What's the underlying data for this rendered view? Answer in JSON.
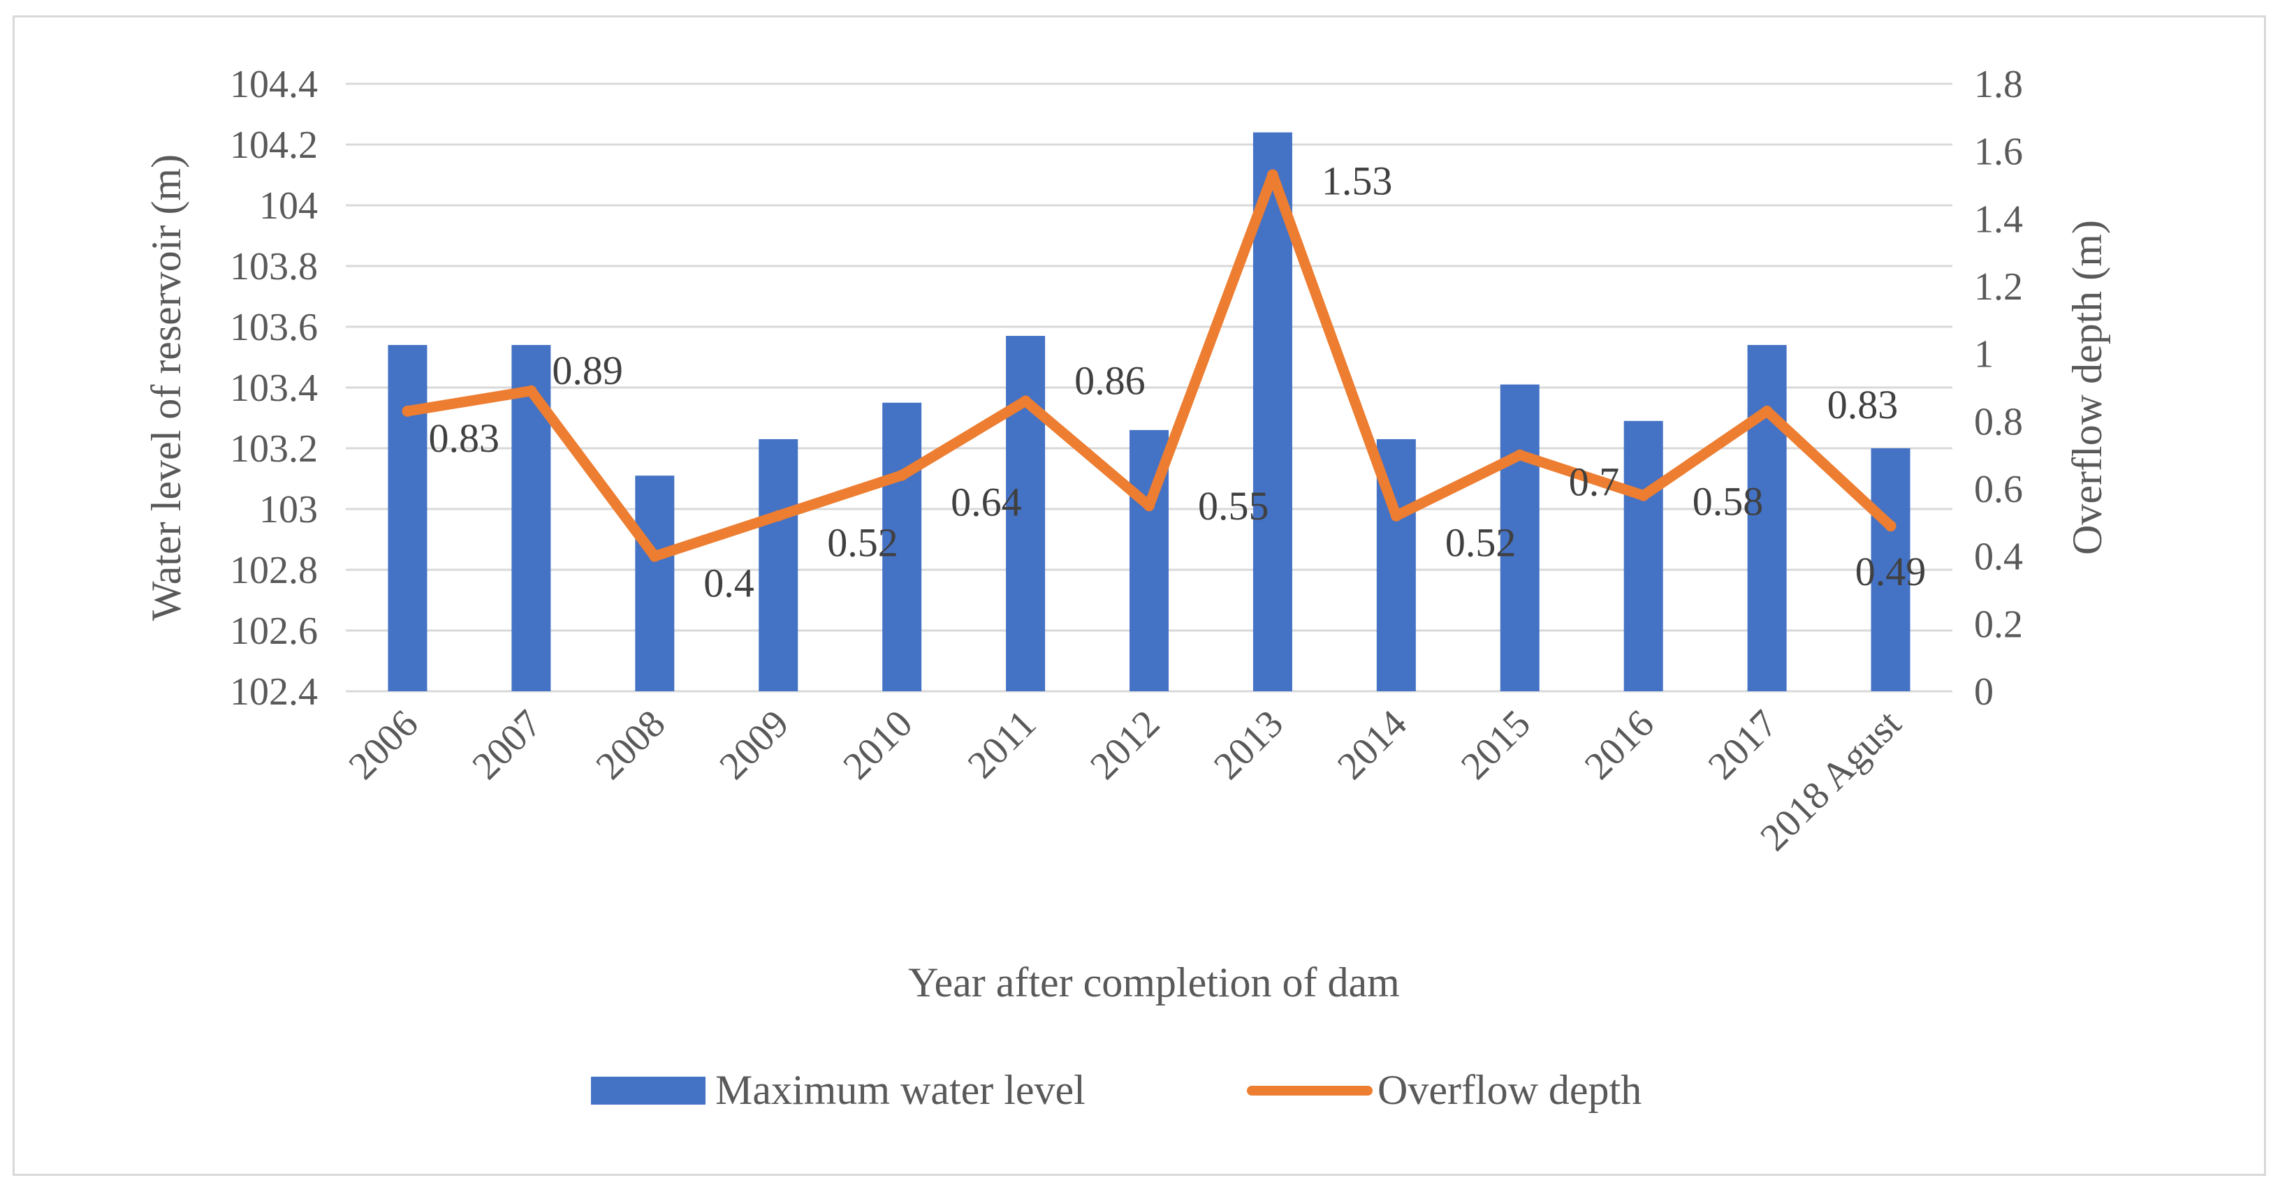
{
  "chart_data": {
    "type": "bar+line",
    "title": "",
    "categories": [
      "2006",
      "2007",
      "2008",
      "2009",
      "2010",
      "2011",
      "2012",
      "2013",
      "2014",
      "2015",
      "2016",
      "2017",
      "2018 Agust"
    ],
    "series": [
      {
        "name": "Maximum water level",
        "type": "bar",
        "axis": "left",
        "color": "#4472C4",
        "values": [
          103.54,
          103.54,
          103.11,
          103.23,
          103.35,
          103.57,
          103.26,
          104.24,
          103.23,
          103.41,
          103.29,
          103.54,
          103.2
        ]
      },
      {
        "name": "Overflow depth",
        "type": "line",
        "axis": "right",
        "color": "#ED7D31",
        "values": [
          0.83,
          0.89,
          0.4,
          0.52,
          0.64,
          0.86,
          0.55,
          1.53,
          0.52,
          0.7,
          0.58,
          0.83,
          0.49
        ],
        "labels": [
          "0.83",
          "0.89",
          "0.4",
          "0.52",
          "0.64",
          "0.86",
          "0.55",
          "1.53",
          "0.52",
          "0.7",
          "0.58",
          "0.83",
          "0.49"
        ]
      }
    ],
    "xlabel": "Year after completion of dam",
    "ylabel": "Water level of reservoir (m)",
    "y2label": "Overflow depth (m)",
    "ylim": [
      102.4,
      104.4
    ],
    "y_ticks": [
      "104.4",
      "104.2",
      "104",
      "103.8",
      "103.6",
      "103.4",
      "103.2",
      "103",
      "102.8",
      "102.6",
      "102.4"
    ],
    "y2lim": [
      0,
      1.8
    ],
    "y2_ticks": [
      "1.8",
      "1.6",
      "1.4",
      "1.2",
      "1",
      "0.8",
      "0.6",
      "0.4",
      "0.2",
      "0"
    ],
    "grid": true,
    "legend": "bottom"
  }
}
